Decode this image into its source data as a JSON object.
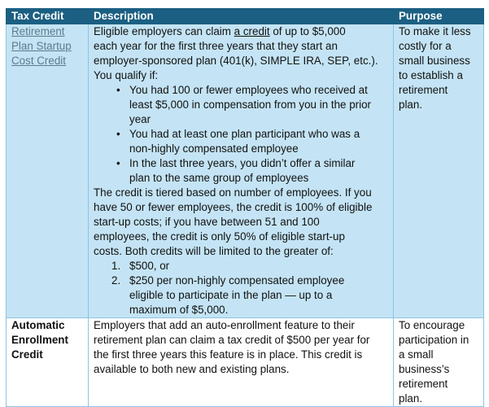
{
  "headers": [
    "Tax Credit",
    "Description",
    "Purpose"
  ],
  "row1": {
    "credit_lines": [
      "Retirement",
      "Plan Startup",
      "Cost Credit"
    ],
    "desc_intro_1a": "Eligible employers can claim ",
    "desc_intro_link": "a credit",
    "desc_intro_1b": " of up to $5,000",
    "desc_intro": [
      "each year for the first three years that they start an",
      "employer-sponsored plan (401(k), SIMPLE IRA, SEP, etc.).",
      "You qualify if:"
    ],
    "bullets": [
      [
        "You had 100 or fewer employees who received at",
        "least $5,000 in compensation from you in the prior",
        "year"
      ],
      [
        "You had at least one plan participant who was a",
        "non-highly compensated employee"
      ],
      [
        "In the last three years, you didn’t offer a similar",
        "plan to the same group of employees"
      ]
    ],
    "desc_mid": [
      "The credit is tiered based on number of employees. If you",
      "have 50 or fewer employees, the credit is 100% of eligible",
      "start-up costs; if you have between 51 and 100",
      "employees, the credit is only 50% of eligible start-up",
      "costs. Both credits will be limited to the greater of:"
    ],
    "numbered": [
      {
        "n": "1.",
        "lines": [
          "$500, or"
        ]
      },
      {
        "n": "2.",
        "lines": [
          "$250 per non-highly compensated employee",
          "eligible to participate in the plan — up to a",
          "maximum of $5,000."
        ]
      }
    ],
    "purpose_lines": [
      "To make it less",
      "costly for a",
      "small business",
      "to establish a",
      "retirement",
      "plan."
    ]
  },
  "row2": {
    "credit_lines": [
      "Automatic",
      "Enrollment",
      "Credit"
    ],
    "desc_lines": [
      "Employers that add an auto-enrollment feature to their",
      "retirement plan can claim a tax credit of $500 per year for",
      "the first three years this feature is in place. This credit is",
      "available to both new and existing plans."
    ],
    "purpose_lines": [
      "To encourage",
      "participation in",
      "a small",
      "business’s",
      "retirement",
      "plan."
    ]
  }
}
